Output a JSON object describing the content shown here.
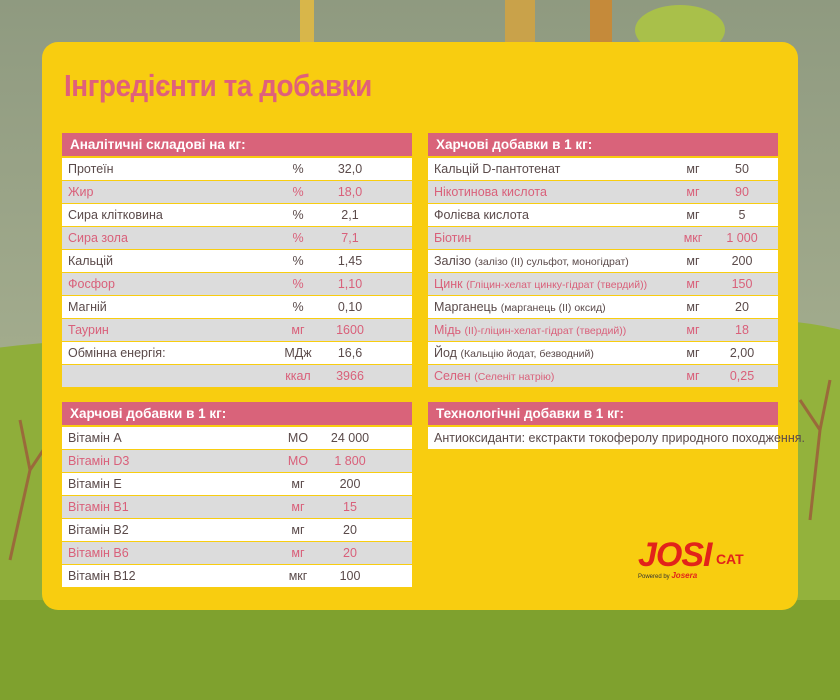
{
  "title": "Інгредієнти та добавки",
  "tables": [
    {
      "header": "Аналітичні складові на кг:",
      "rows": [
        [
          "Протеїн",
          "%",
          "32,0"
        ],
        [
          "Жир",
          "%",
          "18,0"
        ],
        [
          "Сира клітковина",
          "%",
          "2,1"
        ],
        [
          "Сира зола",
          "%",
          "7,1"
        ],
        [
          "Кальцій",
          "%",
          "1,45"
        ],
        [
          "Фосфор",
          "%",
          "1,10"
        ],
        [
          "Магній",
          "%",
          "0,10"
        ],
        [
          "Таурин",
          "мг",
          "1600"
        ],
        [
          "Обмінна енергія:",
          "МДж",
          "16,6"
        ],
        [
          null,
          "ккал",
          "3966"
        ]
      ]
    },
    {
      "header": "Харчові добавки в 1 кг:",
      "rows": [
        [
          "Вітамін А",
          "МО",
          "24 000"
        ],
        [
          "Вітамін D3",
          "МО",
          "1 800"
        ],
        [
          "Вітамін Е",
          "мг",
          "200"
        ],
        [
          "Вітамін В1",
          "мг",
          "15"
        ],
        [
          "Вітамін В2",
          "мг",
          "20"
        ],
        [
          "Вітамін В6",
          "мг",
          "20"
        ],
        [
          "Вітамін В12",
          "мкг",
          "100"
        ]
      ]
    },
    {
      "header": "Харчові добавки в 1 кг:",
      "rows": [
        [
          "Кальцій D-пантотенат",
          "мг",
          "50"
        ],
        [
          "Нікотинова кислота",
          "мг",
          "90"
        ],
        [
          "Фолієва кислота",
          "мг",
          "5"
        ],
        [
          "Біотин",
          "мкг",
          "1 000"
        ],
        [
          "Залізо",
          "мг",
          "200",
          "(залізо (II) сульфот, моногідрат)"
        ],
        [
          "Цинк",
          "мг",
          "150",
          "(Гліцин-хелат цинку-гідрат (твердий))"
        ],
        [
          "Марганець",
          "мг",
          "20",
          "(марганець (II) оксид)"
        ],
        [
          "Мідь",
          "мг",
          "18",
          "(II)-гліцин-хелат-гідрат (твердий))"
        ],
        [
          "Йод",
          "мг",
          "2,00",
          "(Кальцію йодат, безводний)"
        ],
        [
          "Селен",
          "мг",
          "0,25",
          "(Селеніт натрію)"
        ]
      ]
    },
    {
      "header": "Технологічні добавки в 1 кг:",
      "rows": [
        [
          "Антиоксиданти: екстракти токоферолу природного походження."
        ]
      ]
    }
  ],
  "logo": {
    "brand": "JOSI",
    "sub": "CAT",
    "powered": "Powered by",
    "maker": "Josera"
  }
}
